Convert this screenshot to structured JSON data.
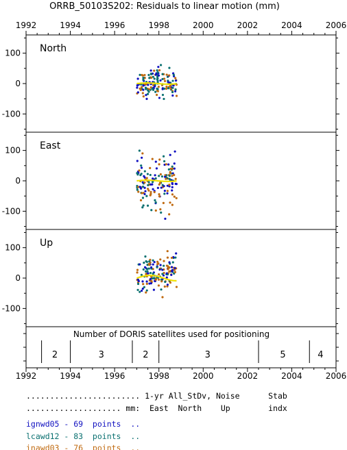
{
  "title": "ORRB_50103S202: Residuals to linear motion (mm)",
  "colors": {
    "series1": "#1010c0",
    "series2": "#0a7070",
    "series3": "#c06a10",
    "smooth": "#f0e000",
    "axis": "#000000"
  },
  "chart_data": [
    {
      "type": "scatter",
      "panel": "North",
      "xlim": [
        1992,
        2006
      ],
      "ylim": [
        -160,
        160
      ],
      "xticks": [
        1992,
        1994,
        1996,
        1998,
        2000,
        2002,
        2004,
        2006
      ],
      "yticks": [
        100,
        0,
        -100
      ],
      "grid": false,
      "x_range": [
        1997.0,
        1998.8
      ],
      "y_spread": 45,
      "smooth_trend": "flat near 0"
    },
    {
      "type": "scatter",
      "panel": "East",
      "xlim": [
        1992,
        2006
      ],
      "ylim": [
        -160,
        160
      ],
      "xticks": [
        1992,
        1994,
        1996,
        1998,
        2000,
        2002,
        2004,
        2006
      ],
      "yticks": [
        100,
        0,
        -100
      ],
      "grid": false,
      "x_range": [
        1997.0,
        1998.8
      ],
      "y_spread": 75,
      "smooth_trend": "flat near 0"
    },
    {
      "type": "scatter",
      "panel": "Up",
      "xlim": [
        1992,
        2006
      ],
      "ylim": [
        -160,
        160
      ],
      "xticks": [
        1992,
        1994,
        1996,
        1998,
        2000,
        2002,
        2004,
        2006
      ],
      "yticks": [
        100,
        0,
        -100
      ],
      "grid": false,
      "x_range": [
        1997.0,
        1998.8
      ],
      "y_spread": 55,
      "smooth_trend": "slight rise after 1998",
      "drift": 30
    },
    {
      "type": "table",
      "panel": "DORIS",
      "title": "Number of DORIS satellites used for positioning",
      "dividers": [
        1992.7,
        1994.0,
        1996.8,
        1998.0,
        2002.5,
        2004.8
      ],
      "labels": [
        {
          "x": 1993.3,
          "text": "2"
        },
        {
          "x": 1995.4,
          "text": "3"
        },
        {
          "x": 1997.4,
          "text": "2"
        },
        {
          "x": 2000.2,
          "text": "3"
        },
        {
          "x": 2003.6,
          "text": "5"
        },
        {
          "x": 2005.3,
          "text": "4"
        }
      ]
    }
  ],
  "legend": {
    "header1": "........................ 1-yr All_StDv, Noise      Stab",
    "header2": ".................... mm:  East  North    Up        indx",
    "rows": [
      {
        "text": "ignwd05 - 69  points  ..",
        "color": "#1010c0"
      },
      {
        "text": "lcawd12 - 83  points  ..",
        "color": "#0a7070"
      },
      {
        "text": "inawd03 - 76  points  ..",
        "color": "#c06a10"
      }
    ]
  }
}
